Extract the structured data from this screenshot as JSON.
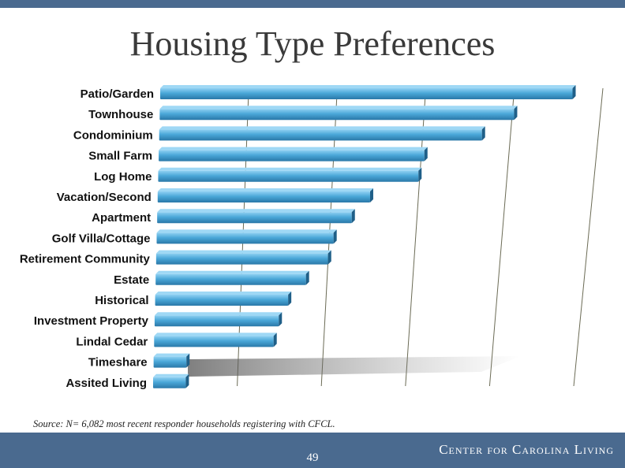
{
  "header": {
    "title": "Housing Type Preferences"
  },
  "chart_data": {
    "type": "bar",
    "orientation": "horizontal",
    "categories": [
      "Patio/Garden",
      "Townhouse",
      "Condominium",
      "Small Farm",
      "Log Home",
      "Vacation/Second",
      "Apartment",
      "Golf Villa/Cottage",
      "Retirement Community",
      "Estate",
      "Historical",
      "Investment Property",
      "Lindal Cedar",
      "Timeshare",
      "Assited Living"
    ],
    "values": [
      4.75,
      4.1,
      3.75,
      3.1,
      3.05,
      2.5,
      2.3,
      2.1,
      2.05,
      1.8,
      1.6,
      1.5,
      1.45,
      0.4,
      0.4
    ],
    "xlim": [
      0,
      5.25
    ],
    "grid": true,
    "legend": "none",
    "bar_color": "#3f9ed3"
  },
  "footer": {
    "source": "Source: N= 6,082 most recent responder households registering with CFCL.",
    "page_number": "49",
    "brand": "Center for Carolina Living",
    "band_color": "#4a6a8f"
  }
}
